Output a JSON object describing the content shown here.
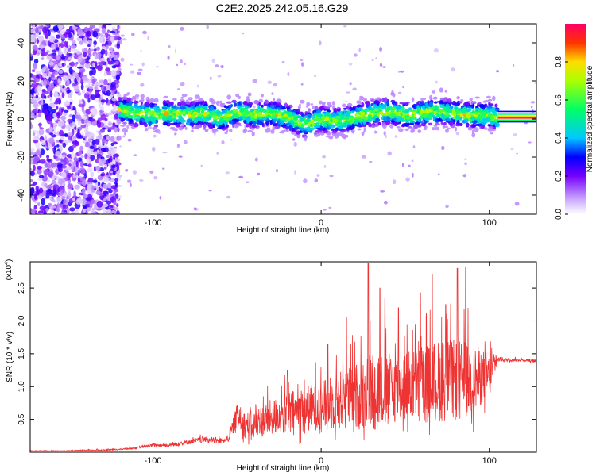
{
  "title": "C2E2.2025.242.05.16.G29",
  "chart_data": [
    {
      "type": "heatmap",
      "title": "C2E2.2025.242.05.16.G29",
      "xlabel": "Height of straight line (km)",
      "ylabel": "Frequency (Hz)",
      "xlim": [
        -173,
        128
      ],
      "ylim": [
        -50,
        50
      ],
      "xticks": [
        -100,
        0,
        100
      ],
      "yticks": [
        -40,
        -20,
        0,
        20,
        40
      ],
      "xtick_labels": [
        "-100",
        "0",
        "100"
      ],
      "ytick_labels": [
        "-40",
        "-20",
        "0",
        "20",
        "40"
      ],
      "noise_region": {
        "x_start": -173,
        "x_end": -120
      },
      "ridge": {
        "x": [
          -120,
          -110,
          -100,
          -90,
          -80,
          -70,
          -60,
          -50,
          -40,
          -30,
          -20,
          -10,
          0,
          10,
          20,
          30,
          40,
          50,
          60,
          70,
          80,
          90,
          100,
          105,
          128
        ],
        "freq": [
          5,
          3,
          2,
          3,
          2,
          3,
          0,
          4,
          2,
          3,
          1,
          -3,
          0,
          -1,
          1,
          3,
          4,
          2,
          3,
          4,
          3,
          2,
          2,
          1,
          1
        ]
      },
      "colorbar": {
        "label": "Normalized spectral amplitude",
        "range": [
          0.0,
          1.0
        ],
        "ticks": [
          0.0,
          0.2,
          0.4,
          0.6,
          0.8
        ],
        "tick_labels": [
          "0.0",
          "0.2",
          "0.4",
          "0.6",
          "0.8"
        ]
      }
    },
    {
      "type": "line",
      "xlabel": "Height of straight line (km)",
      "ylabel": "SNR (10 * v/v)",
      "yscale_label": "(x10",
      "yscale_exp": "4",
      "xlim": [
        -173,
        128
      ],
      "ylim": [
        0,
        2.9
      ],
      "xticks": [
        -100,
        0,
        100
      ],
      "yticks": [
        0.5,
        1.0,
        1.5,
        2.0,
        2.5
      ],
      "xtick_labels": [
        "-100",
        "0",
        "100"
      ],
      "ytick_labels": [
        "0.5",
        "1.0",
        "1.5",
        "2.0",
        "2.5"
      ],
      "color": "#ee3333",
      "series": [
        {
          "name": "SNR",
          "x": [
            -173,
            -160,
            -150,
            -140,
            -130,
            -120,
            -110,
            -100,
            -90,
            -80,
            -70,
            -60,
            -55,
            -50,
            -45,
            -40,
            -30,
            -20,
            -10,
            0,
            10,
            20,
            30,
            40,
            50,
            60,
            70,
            80,
            90,
            100,
            105,
            110,
            120,
            128
          ],
          "base": [
            0.02,
            0.02,
            0.02,
            0.03,
            0.03,
            0.04,
            0.06,
            0.1,
            0.1,
            0.14,
            0.18,
            0.16,
            0.2,
            0.5,
            0.35,
            0.35,
            0.45,
            0.5,
            0.55,
            0.6,
            0.65,
            0.7,
            0.75,
            0.8,
            0.85,
            0.85,
            0.9,
            0.9,
            0.95,
            1.05,
            1.4,
            1.4,
            1.4,
            1.38
          ],
          "spread": [
            0.01,
            0.01,
            0.01,
            0.01,
            0.02,
            0.02,
            0.03,
            0.05,
            0.06,
            0.08,
            0.1,
            0.1,
            0.12,
            0.4,
            0.45,
            0.5,
            0.6,
            0.7,
            0.8,
            0.8,
            1.0,
            1.1,
            1.4,
            1.2,
            1.2,
            1.3,
            1.4,
            1.4,
            1.2,
            0.8,
            0.1,
            0.05,
            0.05,
            0.05
          ],
          "peaks": [
            {
              "x": 28,
              "y": 2.88
            },
            {
              "x": 81,
              "y": 2.8
            },
            {
              "x": 86,
              "y": 2.82
            },
            {
              "x": 35,
              "y": 2.5
            },
            {
              "x": 38,
              "y": 2.35
            },
            {
              "x": 59,
              "y": 2.43
            },
            {
              "x": 66,
              "y": 2.7
            },
            {
              "x": 4,
              "y": 1.65
            },
            {
              "x": 15,
              "y": 2.05
            },
            {
              "x": 46,
              "y": 2.2
            },
            {
              "x": 74,
              "y": 2.25
            },
            {
              "x": -20,
              "y": 1.25
            },
            {
              "x": -10,
              "y": 1.1
            }
          ]
        }
      ]
    }
  ]
}
